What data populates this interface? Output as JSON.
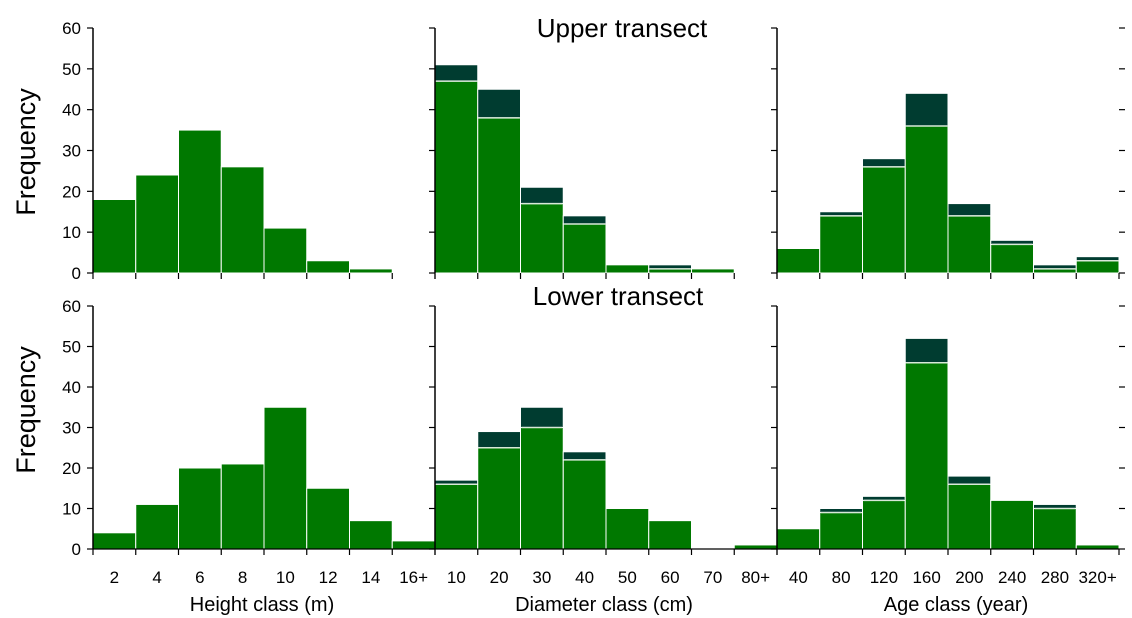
{
  "colors": {
    "live": "#007800",
    "dead": "#003c30",
    "separator": "#d8e8d8",
    "axis": "#000000"
  },
  "rows": [
    {
      "title": "Upper transect",
      "ylabel": "Frequency"
    },
    {
      "title": "Lower transect",
      "ylabel": "Frequency"
    }
  ],
  "xlabels": [
    "Height class (m)",
    "Diameter class (cm)",
    "Age class (year)"
  ],
  "chart_data": [
    {
      "type": "bar",
      "stacked": true,
      "row": 0,
      "col": 0,
      "title": "Upper transect",
      "ylabel": "Frequency",
      "xlabel": "",
      "ylim": [
        0,
        60
      ],
      "yticks": [
        0,
        10,
        20,
        30,
        40,
        50,
        60
      ],
      "categories": [
        "2",
        "4",
        "6",
        "8",
        "10",
        "12",
        "14",
        "16+"
      ],
      "series": [
        {
          "values": [
            18,
            24,
            35,
            26,
            11,
            3,
            1,
            0
          ]
        },
        {
          "values": [
            0,
            0,
            0,
            0,
            0,
            0,
            0,
            0
          ]
        }
      ]
    },
    {
      "type": "bar",
      "stacked": true,
      "row": 0,
      "col": 1,
      "title": "",
      "ylabel": "",
      "xlabel": "",
      "ylim": [
        0,
        60
      ],
      "categories": [
        "10",
        "20",
        "30",
        "40",
        "50",
        "60",
        "70",
        "80+"
      ],
      "series": [
        {
          "values": [
            47,
            38,
            17,
            12,
            2,
            1,
            1,
            0
          ]
        },
        {
          "values": [
            4,
            7,
            4,
            2,
            0,
            1,
            0,
            0
          ]
        }
      ]
    },
    {
      "type": "bar",
      "stacked": true,
      "row": 0,
      "col": 2,
      "title": "",
      "ylabel": "",
      "xlabel": "",
      "ylim": [
        0,
        60
      ],
      "categories": [
        "40",
        "80",
        "120",
        "160",
        "200",
        "240",
        "280",
        "320+"
      ],
      "series": [
        {
          "values": [
            6,
            14,
            26,
            36,
            14,
            7,
            1,
            3
          ]
        },
        {
          "values": [
            0,
            1,
            2,
            8,
            3,
            1,
            1,
            1
          ]
        }
      ]
    },
    {
      "type": "bar",
      "stacked": true,
      "row": 1,
      "col": 0,
      "title": "Lower transect",
      "ylabel": "Frequency",
      "xlabel": "Height class (m)",
      "ylim": [
        0,
        60
      ],
      "yticks": [
        0,
        10,
        20,
        30,
        40,
        50,
        60
      ],
      "categories": [
        "2",
        "4",
        "6",
        "8",
        "10",
        "12",
        "14",
        "16+"
      ],
      "series": [
        {
          "values": [
            4,
            11,
            20,
            21,
            35,
            15,
            7,
            2
          ]
        },
        {
          "values": [
            0,
            0,
            0,
            0,
            0,
            0,
            0,
            0
          ]
        }
      ]
    },
    {
      "type": "bar",
      "stacked": true,
      "row": 1,
      "col": 1,
      "title": "",
      "ylabel": "",
      "xlabel": "Diameter class (cm)",
      "ylim": [
        0,
        60
      ],
      "categories": [
        "10",
        "20",
        "30",
        "40",
        "50",
        "60",
        "70",
        "80+"
      ],
      "series": [
        {
          "values": [
            16,
            25,
            30,
            22,
            10,
            7,
            0,
            1
          ]
        },
        {
          "values": [
            1,
            4,
            5,
            2,
            0,
            0,
            0,
            0
          ]
        }
      ]
    },
    {
      "type": "bar",
      "stacked": true,
      "row": 1,
      "col": 2,
      "title": "",
      "ylabel": "",
      "xlabel": "Age class (year)",
      "ylim": [
        0,
        60
      ],
      "categories": [
        "40",
        "80",
        "120",
        "160",
        "200",
        "240",
        "280",
        "320+"
      ],
      "series": [
        {
          "values": [
            5,
            9,
            12,
            46,
            16,
            12,
            10,
            1
          ]
        },
        {
          "values": [
            0,
            1,
            1,
            6,
            2,
            0,
            1,
            0
          ]
        }
      ]
    }
  ]
}
